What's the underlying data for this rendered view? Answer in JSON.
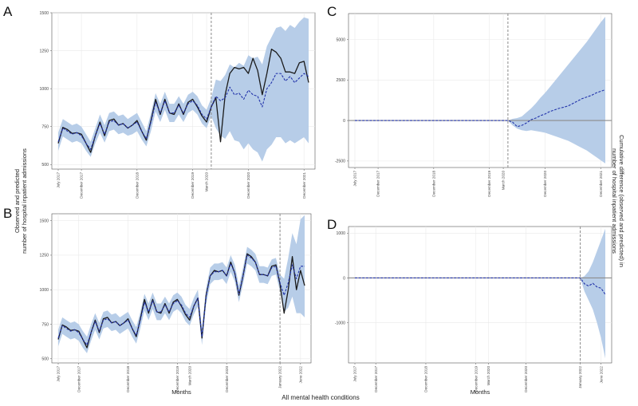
{
  "footer_text": "All mental health conditions",
  "colors": {
    "band": "#b7cde8",
    "observed": "#1a1a1a",
    "predicted": "#2233aa",
    "zero_line": "#8c8c8c",
    "grid": "#e9e9e9",
    "intervention": "#8a8a8a"
  },
  "ylabel_left": {
    "line1": "Observed and predicted",
    "line2": "number of hospital inpatient admissions"
  },
  "ylabel_right": {
    "line1": "Cumulative difference (observed and predicted) in",
    "line2": "number of hospital inpatient admissions"
  },
  "chart_data": [
    {
      "panel": "A",
      "type": "line",
      "x_start_month": "2017-07",
      "intervention_index": 33,
      "ylim": [
        470,
        1500
      ],
      "yticks": [
        500,
        750,
        1000,
        1250,
        1500
      ],
      "xticks": [
        {
          "index": 0,
          "label": "July 2017"
        },
        {
          "index": 5,
          "label": "December 2017"
        },
        {
          "index": 17,
          "label": "December 2018"
        },
        {
          "index": 29,
          "label": "December 2019"
        },
        {
          "index": 32,
          "label": "March 2020"
        },
        {
          "index": 41,
          "label": "December 2020"
        },
        {
          "index": 53,
          "label": "December 2021"
        }
      ],
      "xlabel": "",
      "series": [
        {
          "name": "observed",
          "values": [
            640,
            745,
            730,
            705,
            710,
            700,
            640,
            580,
            690,
            780,
            690,
            790,
            800,
            760,
            770,
            740,
            760,
            790,
            720,
            660,
            790,
            930,
            830,
            930,
            840,
            830,
            900,
            830,
            910,
            930,
            880,
            820,
            780,
            880,
            940,
            650,
            960,
            1100,
            1140,
            1130,
            1140,
            1100,
            1200,
            1120,
            960,
            1100,
            1260,
            1240,
            1200,
            1110,
            1110,
            1100,
            1170,
            1180,
            1040
          ]
        },
        {
          "name": "predicted",
          "values": [
            650,
            740,
            720,
            700,
            710,
            690,
            640,
            600,
            690,
            770,
            700,
            780,
            790,
            760,
            770,
            740,
            760,
            780,
            720,
            670,
            780,
            910,
            840,
            920,
            840,
            840,
            890,
            840,
            900,
            920,
            890,
            830,
            800,
            880,
            950,
            920,
            940,
            1010,
            960,
            970,
            930,
            990,
            960,
            950,
            880,
            1000,
            1040,
            1100,
            1100,
            1050,
            1080,
            1040,
            1070,
            1100,
            1080
          ]
        },
        {
          "name": "lower",
          "values": [
            590,
            685,
            665,
            645,
            655,
            640,
            590,
            550,
            640,
            710,
            645,
            720,
            730,
            700,
            710,
            690,
            700,
            720,
            665,
            620,
            720,
            850,
            780,
            860,
            780,
            780,
            830,
            780,
            840,
            860,
            830,
            770,
            740,
            820,
            740,
            690,
            670,
            720,
            660,
            650,
            600,
            640,
            600,
            580,
            520,
            600,
            630,
            680,
            680,
            640,
            660,
            640,
            660,
            680,
            640
          ]
        },
        {
          "name": "upper",
          "values": [
            710,
            800,
            780,
            760,
            770,
            750,
            700,
            650,
            740,
            830,
            760,
            840,
            850,
            820,
            830,
            800,
            820,
            840,
            780,
            720,
            840,
            970,
            900,
            980,
            900,
            900,
            950,
            900,
            960,
            980,
            950,
            890,
            860,
            940,
            1060,
            1050,
            1090,
            1160,
            1140,
            1170,
            1150,
            1220,
            1200,
            1210,
            1160,
            1280,
            1340,
            1400,
            1410,
            1380,
            1420,
            1400,
            1440,
            1470,
            1460
          ]
        }
      ]
    },
    {
      "panel": "C",
      "type": "line",
      "x_start_month": "2017-07",
      "intervention_index": 33,
      "ylim": [
        -2900,
        6600
      ],
      "yticks": [
        -2500,
        0,
        2500,
        5000
      ],
      "xticks": [
        {
          "index": 0,
          "label": "July 2017"
        },
        {
          "index": 5,
          "label": "December 2017"
        },
        {
          "index": 17,
          "label": "December 2018"
        },
        {
          "index": 29,
          "label": "December 2019"
        },
        {
          "index": 32,
          "label": "March 2020"
        },
        {
          "index": 41,
          "label": "December 2020"
        },
        {
          "index": 53,
          "label": "December 2021"
        }
      ],
      "xlabel": "",
      "series": [
        {
          "name": "cumulative_difference",
          "values": [
            0,
            0,
            0,
            0,
            0,
            0,
            0,
            0,
            0,
            0,
            0,
            0,
            0,
            0,
            0,
            0,
            0,
            0,
            0,
            0,
            0,
            0,
            0,
            0,
            0,
            0,
            0,
            0,
            0,
            0,
            0,
            0,
            0,
            0,
            -100,
            -380,
            -300,
            -150,
            50,
            150,
            300,
            400,
            550,
            650,
            750,
            820,
            900,
            1050,
            1200,
            1350,
            1450,
            1550,
            1700,
            1800,
            1900
          ]
        },
        {
          "name": "lower",
          "values": [
            0,
            0,
            0,
            0,
            0,
            0,
            0,
            0,
            0,
            0,
            0,
            0,
            0,
            0,
            0,
            0,
            0,
            0,
            0,
            0,
            0,
            0,
            0,
            0,
            0,
            0,
            0,
            0,
            0,
            0,
            0,
            0,
            0,
            0,
            -300,
            -500,
            -600,
            -650,
            -600,
            -650,
            -700,
            -750,
            -850,
            -950,
            -1050,
            -1150,
            -1250,
            -1400,
            -1550,
            -1700,
            -1850,
            -2050,
            -2250,
            -2450,
            -2650
          ]
        },
        {
          "name": "upper",
          "values": [
            0,
            0,
            0,
            0,
            0,
            0,
            0,
            0,
            0,
            0,
            0,
            0,
            0,
            0,
            0,
            0,
            0,
            0,
            0,
            0,
            0,
            0,
            0,
            0,
            0,
            0,
            0,
            0,
            0,
            0,
            0,
            0,
            0,
            0,
            100,
            150,
            250,
            500,
            750,
            1050,
            1400,
            1700,
            2050,
            2400,
            2750,
            3100,
            3450,
            3800,
            4150,
            4500,
            4850,
            5250,
            5650,
            6050,
            6400
          ]
        }
      ]
    },
    {
      "panel": "B",
      "type": "line",
      "x_start_month": "2017-07",
      "intervention_index": 54,
      "ylim": [
        470,
        1550
      ],
      "yticks": [
        500,
        750,
        1000,
        1250,
        1500
      ],
      "xticks": [
        {
          "index": 0,
          "label": "July 2017"
        },
        {
          "index": 5,
          "label": "December 2017"
        },
        {
          "index": 17,
          "label": "December 2018"
        },
        {
          "index": 29,
          "label": "December 2019"
        },
        {
          "index": 32,
          "label": "March 2020"
        },
        {
          "index": 41,
          "label": "December 2020"
        },
        {
          "index": 54,
          "label": "January 2022"
        },
        {
          "index": 59,
          "label": "June 2022"
        }
      ],
      "xlabel": "Months",
      "series": [
        {
          "name": "observed",
          "values": [
            640,
            745,
            730,
            705,
            710,
            700,
            640,
            580,
            690,
            780,
            690,
            790,
            800,
            760,
            770,
            740,
            760,
            790,
            720,
            660,
            790,
            930,
            830,
            930,
            840,
            830,
            900,
            830,
            910,
            930,
            880,
            820,
            780,
            880,
            940,
            650,
            960,
            1100,
            1140,
            1130,
            1140,
            1100,
            1200,
            1120,
            960,
            1100,
            1260,
            1240,
            1200,
            1110,
            1110,
            1100,
            1170,
            1180,
            1040,
            830,
            1000,
            1240,
            1000,
            1140,
            1030
          ]
        },
        {
          "name": "predicted",
          "values": [
            650,
            740,
            720,
            700,
            710,
            690,
            640,
            600,
            690,
            770,
            700,
            780,
            790,
            760,
            770,
            740,
            760,
            780,
            720,
            670,
            780,
            910,
            840,
            920,
            840,
            840,
            890,
            840,
            900,
            920,
            890,
            830,
            800,
            880,
            940,
            660,
            950,
            1100,
            1130,
            1130,
            1140,
            1100,
            1190,
            1120,
            970,
            1100,
            1250,
            1230,
            1200,
            1110,
            1110,
            1100,
            1160,
            1170,
            1050,
            960,
            1050,
            1180,
            1080,
            1170,
            1170
          ]
        },
        {
          "name": "lower",
          "values": [
            590,
            680,
            660,
            640,
            650,
            630,
            580,
            540,
            630,
            710,
            640,
            720,
            730,
            700,
            710,
            680,
            700,
            720,
            660,
            610,
            720,
            850,
            780,
            860,
            780,
            780,
            830,
            780,
            840,
            860,
            830,
            770,
            740,
            820,
            880,
            600,
            890,
            1040,
            1070,
            1070,
            1080,
            1040,
            1130,
            1060,
            910,
            1040,
            1190,
            1170,
            1140,
            1050,
            1050,
            1040,
            1100,
            1110,
            990,
            840,
            870,
            950,
            830,
            830,
            800
          ]
        },
        {
          "name": "upper",
          "values": [
            710,
            800,
            780,
            760,
            770,
            750,
            700,
            660,
            750,
            830,
            760,
            840,
            850,
            820,
            830,
            800,
            820,
            840,
            780,
            730,
            840,
            970,
            900,
            980,
            900,
            900,
            950,
            900,
            960,
            980,
            950,
            890,
            860,
            940,
            1000,
            720,
            1010,
            1160,
            1190,
            1190,
            1200,
            1160,
            1250,
            1180,
            1030,
            1160,
            1310,
            1290,
            1260,
            1170,
            1170,
            1160,
            1220,
            1230,
            1110,
            1080,
            1230,
            1410,
            1330,
            1510,
            1540
          ]
        }
      ]
    },
    {
      "panel": "D",
      "type": "line",
      "x_start_month": "2017-07",
      "intervention_index": 54,
      "ylim": [
        -1900,
        1150
      ],
      "yticks": [
        -1000,
        0,
        1000
      ],
      "xticks": [
        {
          "index": 0,
          "label": "July 2017"
        },
        {
          "index": 5,
          "label": "December 2017"
        },
        {
          "index": 17,
          "label": "December 2018"
        },
        {
          "index": 29,
          "label": "December 2019"
        },
        {
          "index": 32,
          "label": "March 2020"
        },
        {
          "index": 41,
          "label": "December 2020"
        },
        {
          "index": 54,
          "label": "January 2022"
        },
        {
          "index": 59,
          "label": "June 2022"
        }
      ],
      "xlabel": "Months",
      "series": [
        {
          "name": "cumulative_difference",
          "values": [
            0,
            0,
            0,
            0,
            0,
            0,
            0,
            0,
            0,
            0,
            0,
            0,
            0,
            0,
            0,
            0,
            0,
            0,
            0,
            0,
            0,
            0,
            0,
            0,
            0,
            0,
            0,
            0,
            0,
            0,
            0,
            0,
            0,
            0,
            0,
            0,
            0,
            0,
            0,
            0,
            0,
            0,
            0,
            0,
            0,
            0,
            0,
            0,
            0,
            0,
            0,
            0,
            0,
            0,
            0,
            -130,
            -180,
            -120,
            -200,
            -230,
            -370
          ]
        },
        {
          "name": "lower",
          "values": [
            0,
            0,
            0,
            0,
            0,
            0,
            0,
            0,
            0,
            0,
            0,
            0,
            0,
            0,
            0,
            0,
            0,
            0,
            0,
            0,
            0,
            0,
            0,
            0,
            0,
            0,
            0,
            0,
            0,
            0,
            0,
            0,
            0,
            0,
            0,
            0,
            0,
            0,
            0,
            0,
            0,
            0,
            0,
            0,
            0,
            0,
            0,
            0,
            0,
            0,
            0,
            0,
            0,
            0,
            0,
            -300,
            -500,
            -700,
            -1000,
            -1350,
            -1800
          ]
        },
        {
          "name": "upper",
          "values": [
            0,
            0,
            0,
            0,
            0,
            0,
            0,
            0,
            0,
            0,
            0,
            0,
            0,
            0,
            0,
            0,
            0,
            0,
            0,
            0,
            0,
            0,
            0,
            0,
            0,
            0,
            0,
            0,
            0,
            0,
            0,
            0,
            0,
            0,
            0,
            0,
            0,
            0,
            0,
            0,
            0,
            0,
            0,
            0,
            0,
            0,
            0,
            0,
            0,
            0,
            0,
            0,
            0,
            0,
            0,
            40,
            150,
            350,
            600,
            850,
            1100
          ]
        }
      ]
    }
  ]
}
